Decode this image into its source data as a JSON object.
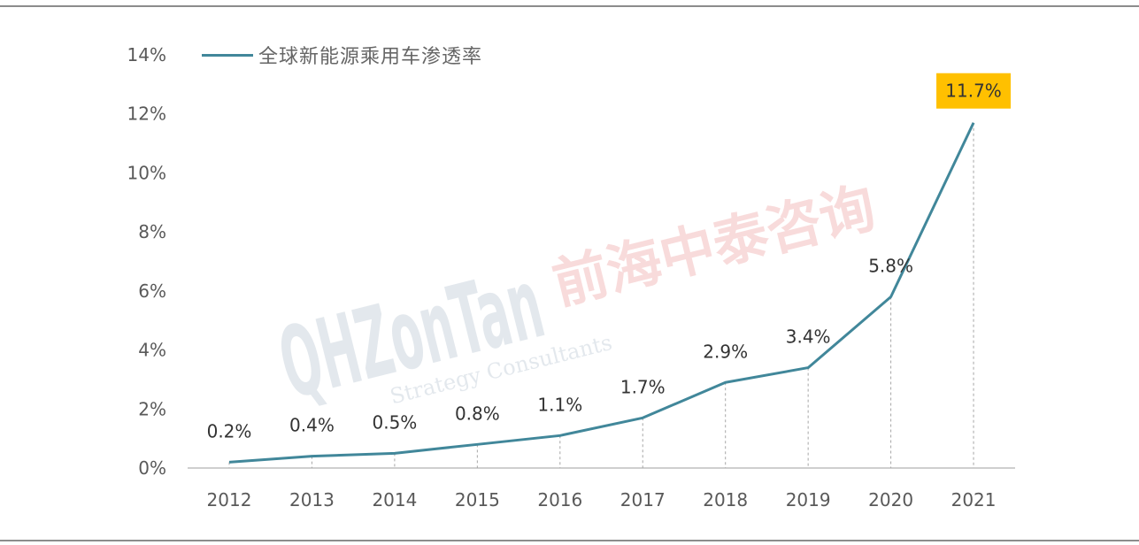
{
  "chart_data": {
    "type": "line",
    "title": "",
    "xlabel": "",
    "ylabel": "",
    "categories": [
      "2012",
      "2013",
      "2014",
      "2015",
      "2016",
      "2017",
      "2018",
      "2019",
      "2020",
      "2021"
    ],
    "series": [
      {
        "name": "全球新能源乘用车渗透率",
        "values": [
          0.2,
          0.4,
          0.5,
          0.8,
          1.1,
          1.7,
          2.9,
          3.4,
          5.8,
          11.7
        ],
        "color": "#41879a"
      }
    ],
    "data_labels": [
      "0.2%",
      "0.4%",
      "0.5%",
      "0.8%",
      "1.1%",
      "1.7%",
      "2.9%",
      "3.4%",
      "5.8%",
      "11.7%"
    ],
    "highlight_label": {
      "index": 9,
      "background": "#ffc000"
    },
    "ylim": [
      0,
      14
    ],
    "yticks": [
      0,
      2,
      4,
      6,
      8,
      10,
      12,
      14
    ],
    "ytick_labels": [
      "0%",
      "2%",
      "4%",
      "6%",
      "8%",
      "10%",
      "12%",
      "14%"
    ],
    "grid": false,
    "drop_lines": true,
    "legend_position": "top-left"
  },
  "watermark": {
    "text": "QHZonTan",
    "subtitle": "Strategy Consultants",
    "cn": "前海中泰咨询"
  }
}
